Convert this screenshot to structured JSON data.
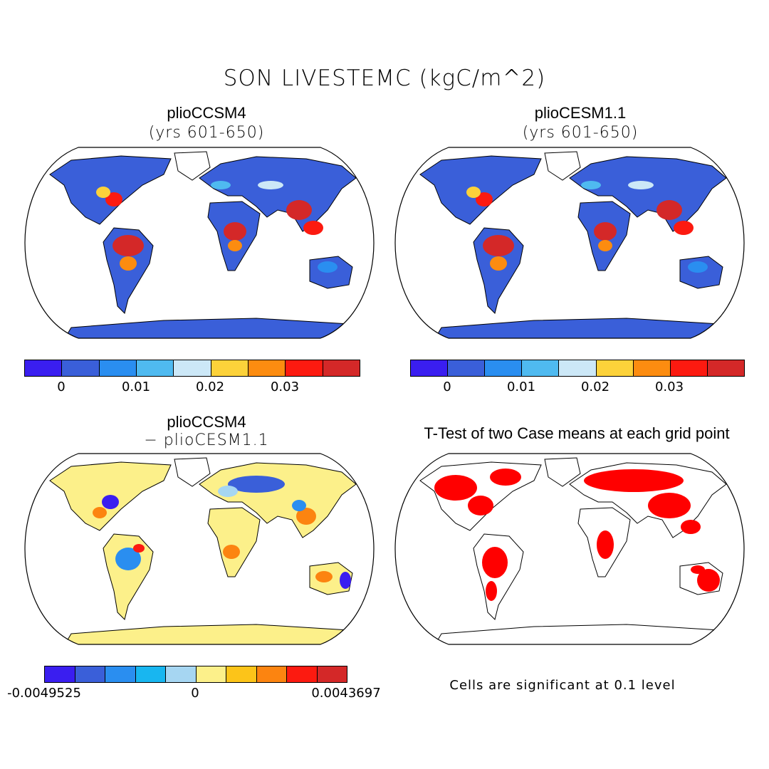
{
  "title": "SON LIVESTEMC (kgC/m^2)",
  "panels": {
    "tl": {
      "title": "plioCCSM4",
      "subtitle": "(yrs 601-650)"
    },
    "tr": {
      "title": "plioCESM1.1",
      "subtitle": "(yrs 601-650)"
    },
    "bl": {
      "title": "plioCCSM4",
      "subtitle": "− plioCESM1.1"
    },
    "br": {
      "title": "T-Test of two Case means at each grid point",
      "note": "Cells are significant at 0.1 level"
    }
  },
  "colorbar_main": {
    "colors": [
      "#3a1ef0",
      "#3a5fd9",
      "#2a8ef0",
      "#4fbaf0",
      "#cce8f7",
      "#fcd23a",
      "#fc8c10",
      "#fc1a10",
      "#d42828"
    ],
    "ticks": [
      "0",
      "0.01",
      "0.02",
      "0.03"
    ]
  },
  "colorbar_diff": {
    "colors": [
      "#3a1ef0",
      "#3a5fd9",
      "#2a8ef0",
      "#18b6f0",
      "#a6d6f2",
      "#fcf08a",
      "#fcc419",
      "#fc8410",
      "#fc1a10",
      "#d42828"
    ],
    "ticks": [
      "-0.0049525",
      "0",
      "0.0043697"
    ]
  },
  "colors": {
    "land_mean": "#3a5fd9",
    "land_diff": "#fcf08a",
    "significant": "#ff0000",
    "ocean": "#ffffff"
  }
}
